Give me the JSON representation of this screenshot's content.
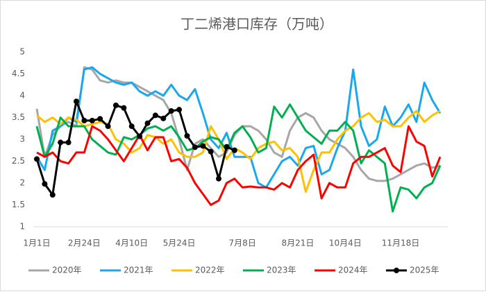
{
  "chart_data": {
    "type": "line",
    "title": "丁二烯港口库存（万吨）",
    "categories": [
      "1月1日",
      null,
      null,
      null,
      null,
      null,
      "2月24日",
      null,
      null,
      null,
      null,
      null,
      "4月10日",
      null,
      null,
      null,
      null,
      null,
      "5月24日",
      null,
      null,
      null,
      null,
      null,
      null,
      null,
      "7月8日",
      null,
      null,
      null,
      null,
      null,
      null,
      "8月21日",
      null,
      null,
      null,
      null,
      null,
      "10月4日",
      null,
      null,
      null,
      null,
      null,
      null,
      "11月18日",
      null,
      null,
      null,
      null,
      null
    ],
    "series": [
      {
        "name": "2020年",
        "color": "#a6a6a6",
        "values": [
          3.7,
          2.6,
          3.1,
          3.3,
          3.4,
          3.3,
          4.65,
          4.6,
          4.35,
          4.3,
          4.35,
          4.3,
          4.3,
          4.2,
          4.1,
          4.0,
          3.9,
          3.6,
          3.0,
          2.3,
          2.9,
          3.0,
          2.8,
          2.6,
          2.7,
          3.1,
          3.3,
          3.3,
          3.2,
          3.0,
          2.7,
          2.6,
          3.2,
          3.5,
          3.6,
          3.5,
          3.2,
          3.0,
          2.9,
          2.8,
          2.6,
          2.3,
          2.1,
          2.05,
          2.05,
          2.1,
          2.2,
          2.3,
          2.4,
          2.45,
          2.35,
          2.4
        ]
      },
      {
        "name": "2021年",
        "color": "#1aa7ec",
        "values": [
          2.6,
          2.3,
          3.2,
          3.3,
          3.5,
          3.4,
          4.6,
          4.65,
          4.5,
          4.4,
          4.3,
          4.25,
          4.3,
          4.1,
          4.0,
          4.1,
          4.0,
          4.25,
          4.0,
          3.9,
          4.15,
          3.6,
          3.0,
          2.8,
          3.15,
          2.6,
          2.6,
          2.6,
          2.0,
          1.9,
          2.2,
          2.5,
          2.6,
          2.4,
          2.8,
          2.85,
          2.2,
          2.3,
          2.8,
          3.2,
          4.6,
          3.3,
          2.85,
          3.0,
          3.75,
          3.3,
          3.5,
          3.8,
          3.4,
          4.3,
          3.9,
          3.6
        ]
      },
      {
        "name": "2022年",
        "color": "#ffc000",
        "values": [
          3.55,
          3.4,
          3.5,
          3.35,
          3.5,
          3.45,
          3.3,
          3.35,
          3.4,
          3.35,
          3.0,
          2.9,
          2.7,
          2.8,
          3.1,
          3.05,
          2.9,
          3.0,
          2.7,
          2.6,
          2.6,
          2.7,
          3.3,
          3.0,
          2.55,
          2.8,
          2.7,
          2.55,
          2.8,
          2.9,
          2.95,
          2.75,
          2.8,
          2.6,
          1.8,
          2.3,
          2.7,
          2.7,
          3.0,
          3.2,
          3.3,
          3.5,
          3.6,
          3.4,
          3.45,
          3.3,
          3.3,
          3.5,
          3.65,
          3.4,
          3.55,
          3.65
        ]
      },
      {
        "name": "2023年",
        "color": "#00b050",
        "values": [
          3.3,
          2.6,
          2.9,
          3.5,
          3.3,
          3.3,
          3.3,
          3.0,
          2.85,
          2.7,
          2.65,
          3.05,
          3.0,
          3.1,
          3.25,
          3.3,
          3.2,
          3.3,
          3.05,
          2.75,
          2.8,
          2.95,
          3.05,
          3.0,
          2.75,
          3.15,
          3.3,
          3.05,
          2.7,
          2.8,
          3.75,
          3.5,
          3.8,
          3.5,
          3.2,
          3.05,
          2.9,
          3.2,
          3.2,
          3.4,
          3.2,
          2.45,
          2.75,
          2.6,
          2.45,
          1.35,
          1.9,
          1.85,
          1.65,
          1.9,
          2.0,
          2.4
        ]
      },
      {
        "name": "2024年",
        "color": "#ff0000",
        "values": [
          2.7,
          2.6,
          2.7,
          2.5,
          2.45,
          2.7,
          2.7,
          3.3,
          3.2,
          3.0,
          2.75,
          2.5,
          2.8,
          3.1,
          2.75,
          3.05,
          3.05,
          2.5,
          2.55,
          2.35,
          2.0,
          1.75,
          1.5,
          1.6,
          2.0,
          2.1,
          1.9,
          1.92,
          1.9,
          1.9,
          1.85,
          2.0,
          1.9,
          2.3,
          2.5,
          2.65,
          1.65,
          2.0,
          1.9,
          1.9,
          2.45,
          2.6,
          2.6,
          2.7,
          2.8,
          2.4,
          2.25,
          3.3,
          2.95,
          2.85,
          2.15,
          2.6
        ]
      },
      {
        "name": "2025年",
        "color": "#000000",
        "marker": true,
        "values": [
          2.55,
          1.98,
          1.73,
          2.93,
          2.93,
          3.87,
          3.43,
          3.43,
          3.47,
          3.3,
          3.78,
          3.72,
          3.3,
          3.07,
          3.37,
          3.55,
          3.48,
          3.65,
          3.68,
          3.08,
          2.82,
          2.85,
          2.72,
          2.1,
          2.83,
          2.75,
          null,
          null,
          null,
          null,
          null,
          null,
          null,
          null,
          null,
          null,
          null,
          null,
          null,
          null,
          null,
          null,
          null,
          null,
          null,
          null,
          null,
          null,
          null,
          null,
          null,
          null
        ]
      }
    ],
    "ylim": [
      1,
      5
    ],
    "yticks": [
      1,
      1.5,
      2,
      2.5,
      3,
      3.5,
      4,
      4.5,
      5
    ],
    "grid": false,
    "legend": "bottom"
  }
}
